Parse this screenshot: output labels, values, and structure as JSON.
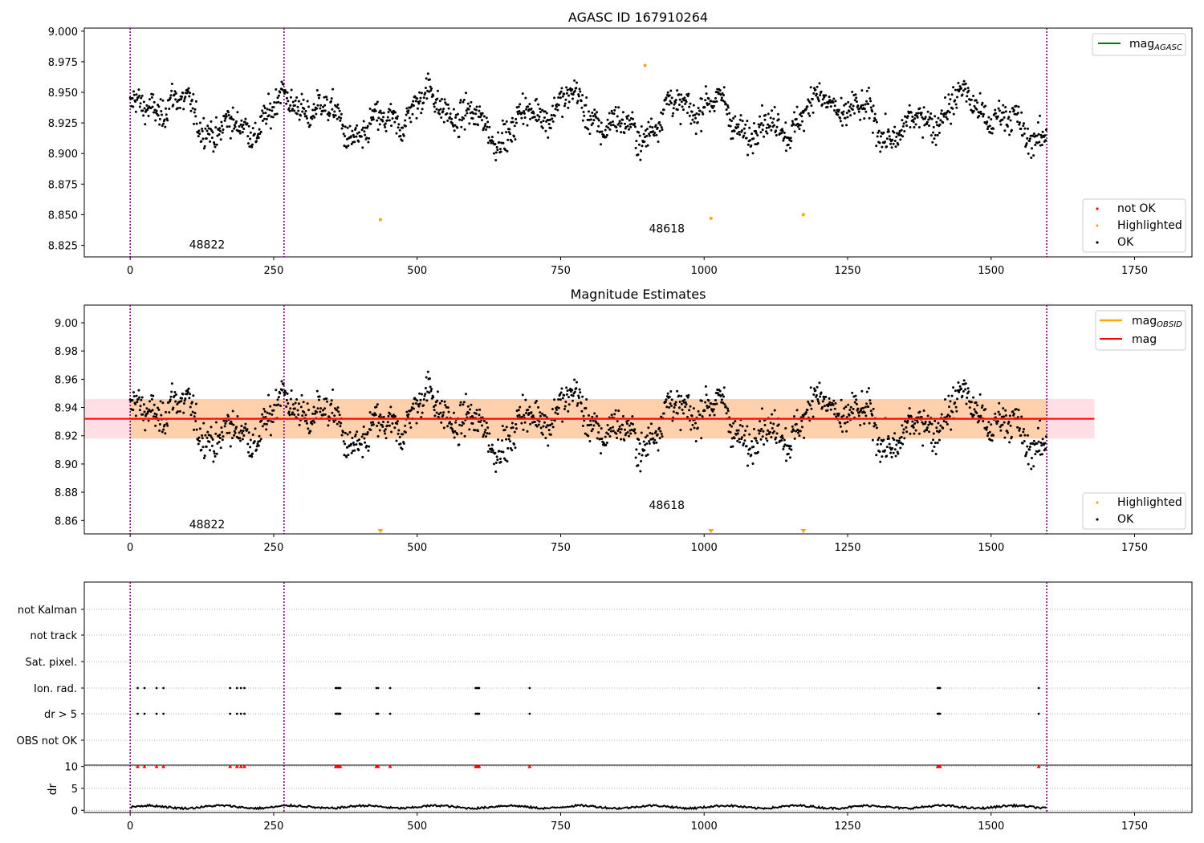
{
  "figure": {
    "panel1_title": "AGASC ID 167910264",
    "panel2_title": "Magnitude Estimates"
  },
  "chart_data": [
    {
      "type": "scatter",
      "title": "AGASC ID 167910264",
      "xlim": [
        -80,
        1850
      ],
      "ylim": [
        8.8155,
        9.0025
      ],
      "x_ticks": [
        0,
        250,
        500,
        750,
        1000,
        1250,
        1500,
        1750
      ],
      "x_tick_labels": [
        "0",
        "250",
        "500",
        "750",
        "1000",
        "1250",
        "1500",
        "1750"
      ],
      "y_ticks": [
        8.825,
        8.85,
        8.875,
        8.9,
        8.925,
        8.95,
        8.975,
        9.0
      ],
      "y_tick_labels": [
        "8.825",
        "8.850",
        "8.875",
        "8.900",
        "8.925",
        "8.950",
        "8.975",
        "9.000"
      ],
      "obsid_boundaries": [
        0,
        268,
        1597
      ],
      "obsid_labels": [
        {
          "text": "48822",
          "x": 134,
          "y": 8.8225
        },
        {
          "text": "48618",
          "x": 935,
          "y": 8.8355
        }
      ],
      "ok_series": {
        "name": "OK",
        "x_start": 0,
        "x_end": 1597,
        "count": 1597,
        "baseline_mag": 8.93,
        "noise_mag": 0.006,
        "approx": true
      },
      "highlighted": {
        "name": "Highlighted",
        "x": [
          436,
          897,
          1012,
          1173
        ],
        "y": [
          8.846,
          8.972,
          8.847,
          8.85
        ]
      },
      "not_ok": {
        "name": "not OK",
        "x": [],
        "y": []
      },
      "legend_upper": [
        {
          "label_main": "mag",
          "label_sub": "AGASC",
          "color": "#008000"
        }
      ],
      "legend_lower": [
        {
          "label": "not OK",
          "color": "#ff0000"
        },
        {
          "label": "Highlighted",
          "color": "#ffa500"
        },
        {
          "label": "OK",
          "color": "#000000"
        }
      ]
    },
    {
      "type": "scatter",
      "title": "Magnitude Estimates",
      "xlim": [
        -80,
        1850
      ],
      "ylim": [
        8.8505,
        9.0125
      ],
      "x_ticks": [
        0,
        250,
        500,
        750,
        1000,
        1250,
        1500,
        1750
      ],
      "x_tick_labels": [
        "0",
        "250",
        "500",
        "750",
        "1000",
        "1250",
        "1500",
        "1750"
      ],
      "y_ticks": [
        8.86,
        8.88,
        8.9,
        8.92,
        8.94,
        8.96,
        8.98,
        9.0
      ],
      "y_tick_labels": [
        "8.86",
        "8.88",
        "8.90",
        "8.92",
        "8.94",
        "8.96",
        "8.98",
        "9.00"
      ],
      "obsid_boundaries": [
        0,
        268,
        1597
      ],
      "obsid_labels": [
        {
          "text": "48822",
          "x": 134,
          "y": 8.8545
        },
        {
          "text": "48618",
          "x": 935,
          "y": 8.868
        }
      ],
      "mag_line": {
        "name": "mag",
        "value": 8.932,
        "color": "#ff0000"
      },
      "mag_band": {
        "low": 8.918,
        "high": 8.946,
        "x_range": [
          -80,
          1680
        ],
        "color": "#ffc0cb"
      },
      "obsid_mag": [
        {
          "name": "mag OBSID",
          "x_range": [
            0,
            1597
          ],
          "value": 8.932,
          "low": 8.918,
          "high": 8.946,
          "color": "#ffa500"
        }
      ],
      "highlighted_markers": {
        "name": "Highlighted",
        "x": [
          436,
          1012,
          1173
        ],
        "y": [
          8.8515,
          8.8515,
          8.8515
        ]
      },
      "legend_upper": [
        {
          "label_main": "mag",
          "label_sub": "OBSID",
          "color": "#ffa500"
        },
        {
          "label_main": "mag",
          "label_sub": "",
          "color": "#ff0000"
        }
      ],
      "legend_lower": [
        {
          "label": "Highlighted",
          "color": "#ffa500"
        },
        {
          "label": "OK",
          "color": "#000000"
        }
      ]
    },
    {
      "type": "scatter",
      "title": "",
      "xlim": [
        -80,
        1850
      ],
      "x_ticks": [
        0,
        250,
        500,
        750,
        1000,
        1250,
        1500,
        1750
      ],
      "x_tick_labels": [
        "0",
        "250",
        "500",
        "750",
        "1000",
        "1250",
        "1500",
        "1750"
      ],
      "flag_rows": [
        "not Kalman",
        "not track",
        "Sat. pixel.",
        "Ion. rad.",
        "dr > 5",
        "OBS not OK"
      ],
      "flag_events": {
        "Ion. rad.": [
          13,
          25,
          46,
          58,
          174,
          186,
          193,
          199,
          358,
          360,
          362,
          364,
          366,
          429,
          432,
          453,
          602,
          604,
          606,
          608,
          696,
          1407,
          1409,
          1411,
          1583
        ],
        "dr > 5": [
          13,
          25,
          46,
          58,
          174,
          186,
          193,
          199,
          358,
          360,
          362,
          364,
          366,
          429,
          432,
          453,
          602,
          604,
          606,
          608,
          696,
          1407,
          1409,
          1411,
          1583
        ]
      },
      "dr": {
        "ylabel": "dr",
        "y_ticks": [
          0,
          5,
          10
        ],
        "y_tick_labels": [
          "0",
          "5",
          "10"
        ],
        "ylim": [
          -0.5,
          10.3
        ],
        "typical_value": 0.9,
        "clipped_markers_x": [
          13,
          25,
          46,
          58,
          174,
          186,
          193,
          199,
          358,
          360,
          362,
          364,
          366,
          429,
          432,
          453,
          602,
          604,
          606,
          608,
          696,
          1407,
          1409,
          1411,
          1583
        ],
        "clipped_value": 10
      },
      "obsid_boundaries": [
        0,
        268,
        1597
      ]
    }
  ]
}
